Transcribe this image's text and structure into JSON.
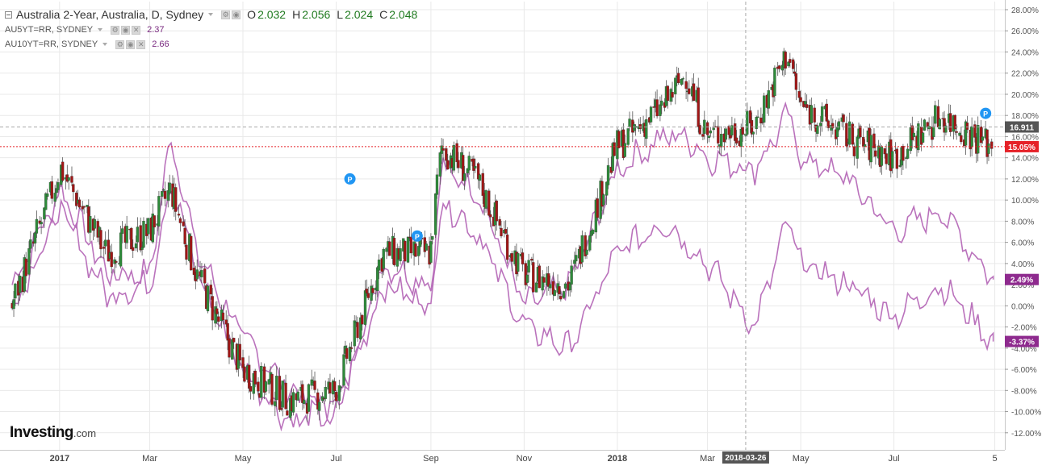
{
  "header": {
    "title": "Australia 2-Year, Australia, D, Sydney",
    "ohlc": [
      {
        "label": "O",
        "value": "2.032"
      },
      {
        "label": "H",
        "value": "2.056"
      },
      {
        "label": "L",
        "value": "2.024"
      },
      {
        "label": "C",
        "value": "2.048"
      }
    ]
  },
  "overlays": [
    {
      "name": "AU5YT=RR, SYDNEY",
      "value": "2.37"
    },
    {
      "name": "AU10YT=RR, SYDNEY",
      "value": "2.66"
    }
  ],
  "logo": {
    "brand": "Investing",
    "suffix": ".com"
  },
  "colors": {
    "up": "#2e8b3a",
    "down": "#a11616",
    "overlay": "#b66ab8",
    "current_badge": "#e52128",
    "overlay_badge": "#8e2a8e",
    "grid": "#e9e9e9",
    "crosshair_badge": "#555555",
    "marker": "#2196f3"
  },
  "chart_data": {
    "type": "line",
    "y_unit": "%",
    "ylim": [
      -13.2,
      29
    ],
    "y_ticks": [
      "28.00%",
      "26.00%",
      "24.00%",
      "22.00%",
      "20.00%",
      "18.00%",
      "16.00%",
      "14.00%",
      "12.00%",
      "10.00%",
      "8.00%",
      "6.00%",
      "4.00%",
      "2.00%",
      "0.00%",
      "-2.00%",
      "-4.00%",
      "-6.00%",
      "-8.00%",
      "-10.00%",
      "-12.00%"
    ],
    "x_ticks": [
      "2017",
      "Mar",
      "May",
      "Jul",
      "Sep",
      "Nov",
      "2018",
      "Mar",
      "May",
      "Jul",
      "5"
    ],
    "grid": true,
    "crosshair": {
      "x_label": "2018-03-26",
      "y_label": "16.911",
      "y_value": 16.911
    },
    "last_value_labels": [
      {
        "text": "15.05%",
        "value": 15.05,
        "role": "main"
      },
      {
        "text": "2.49%",
        "value": 2.49,
        "role": "overlay"
      },
      {
        "text": "-3.37%",
        "value": -3.37,
        "role": "overlay"
      }
    ],
    "event_markers": [
      {
        "label": "P",
        "x": "2017-07-10",
        "y": 12.0
      },
      {
        "label": "P",
        "x": "2017-08-23",
        "y": 6.6
      },
      {
        "label": "P",
        "x": "2018-08-30",
        "y": 18.2
      }
    ],
    "main_series": {
      "name": "Australia 2-Year",
      "kind": "candlestick",
      "dates": [
        "2016-12-01",
        "2017-01-02",
        "2017-02-01",
        "2017-03-01",
        "2017-03-15",
        "2017-04-01",
        "2017-05-01",
        "2017-06-01",
        "2017-07-01",
        "2017-08-01",
        "2017-09-01",
        "2017-09-08",
        "2017-10-01",
        "2017-11-01",
        "2017-12-01",
        "2018-01-01",
        "2018-02-01",
        "2018-02-15",
        "2018-03-01",
        "2018-04-01",
        "2018-04-23",
        "2018-05-01",
        "2018-06-01",
        "2018-07-01",
        "2018-08-01",
        "2018-09-04"
      ],
      "values": [
        0,
        13,
        5,
        7,
        11,
        3,
        -6,
        -9,
        -8,
        5,
        5,
        15,
        12,
        3,
        2,
        15,
        19,
        22,
        16,
        17,
        24,
        19,
        16,
        14,
        18,
        15.05
      ]
    },
    "series": [
      {
        "name": "AU5YT=RR, SYDNEY",
        "kind": "line",
        "dates": [
          "2016-12-01",
          "2017-01-02",
          "2017-02-01",
          "2017-03-01",
          "2017-03-15",
          "2017-04-01",
          "2017-05-01",
          "2017-06-01",
          "2017-07-01",
          "2017-08-01",
          "2017-09-01",
          "2017-09-08",
          "2017-10-01",
          "2017-11-01",
          "2017-12-01",
          "2018-01-01",
          "2018-02-01",
          "2018-02-15",
          "2018-03-01",
          "2018-04-01",
          "2018-04-23",
          "2018-05-01",
          "2018-06-01",
          "2018-07-01",
          "2018-08-01",
          "2018-09-04"
        ],
        "values": [
          2,
          11,
          3,
          3,
          16,
          5,
          -3,
          -8,
          -10,
          4,
          2,
          13,
          11,
          0,
          2,
          13,
          16,
          16,
          14,
          13,
          18,
          14,
          12,
          7,
          9,
          2.49
        ]
      },
      {
        "name": "AU10YT=RR, SYDNEY",
        "kind": "line",
        "dates": [
          "2016-12-01",
          "2017-01-02",
          "2017-02-01",
          "2017-03-01",
          "2017-03-15",
          "2017-04-01",
          "2017-05-01",
          "2017-06-01",
          "2017-07-01",
          "2017-08-01",
          "2017-09-01",
          "2017-09-08",
          "2017-10-01",
          "2017-11-01",
          "2017-12-01",
          "2018-01-01",
          "2018-02-01",
          "2018-02-15",
          "2018-03-01",
          "2018-04-01",
          "2018-04-23",
          "2018-05-01",
          "2018-06-01",
          "2018-07-01",
          "2018-08-01",
          "2018-09-04"
        ],
        "values": [
          0,
          9,
          1,
          2,
          12,
          3,
          -6,
          -11,
          -10,
          2,
          0,
          10,
          7,
          -2,
          -4,
          5,
          8,
          6,
          4,
          -2,
          8,
          4,
          2,
          -1,
          2,
          -3.37
        ]
      }
    ]
  }
}
